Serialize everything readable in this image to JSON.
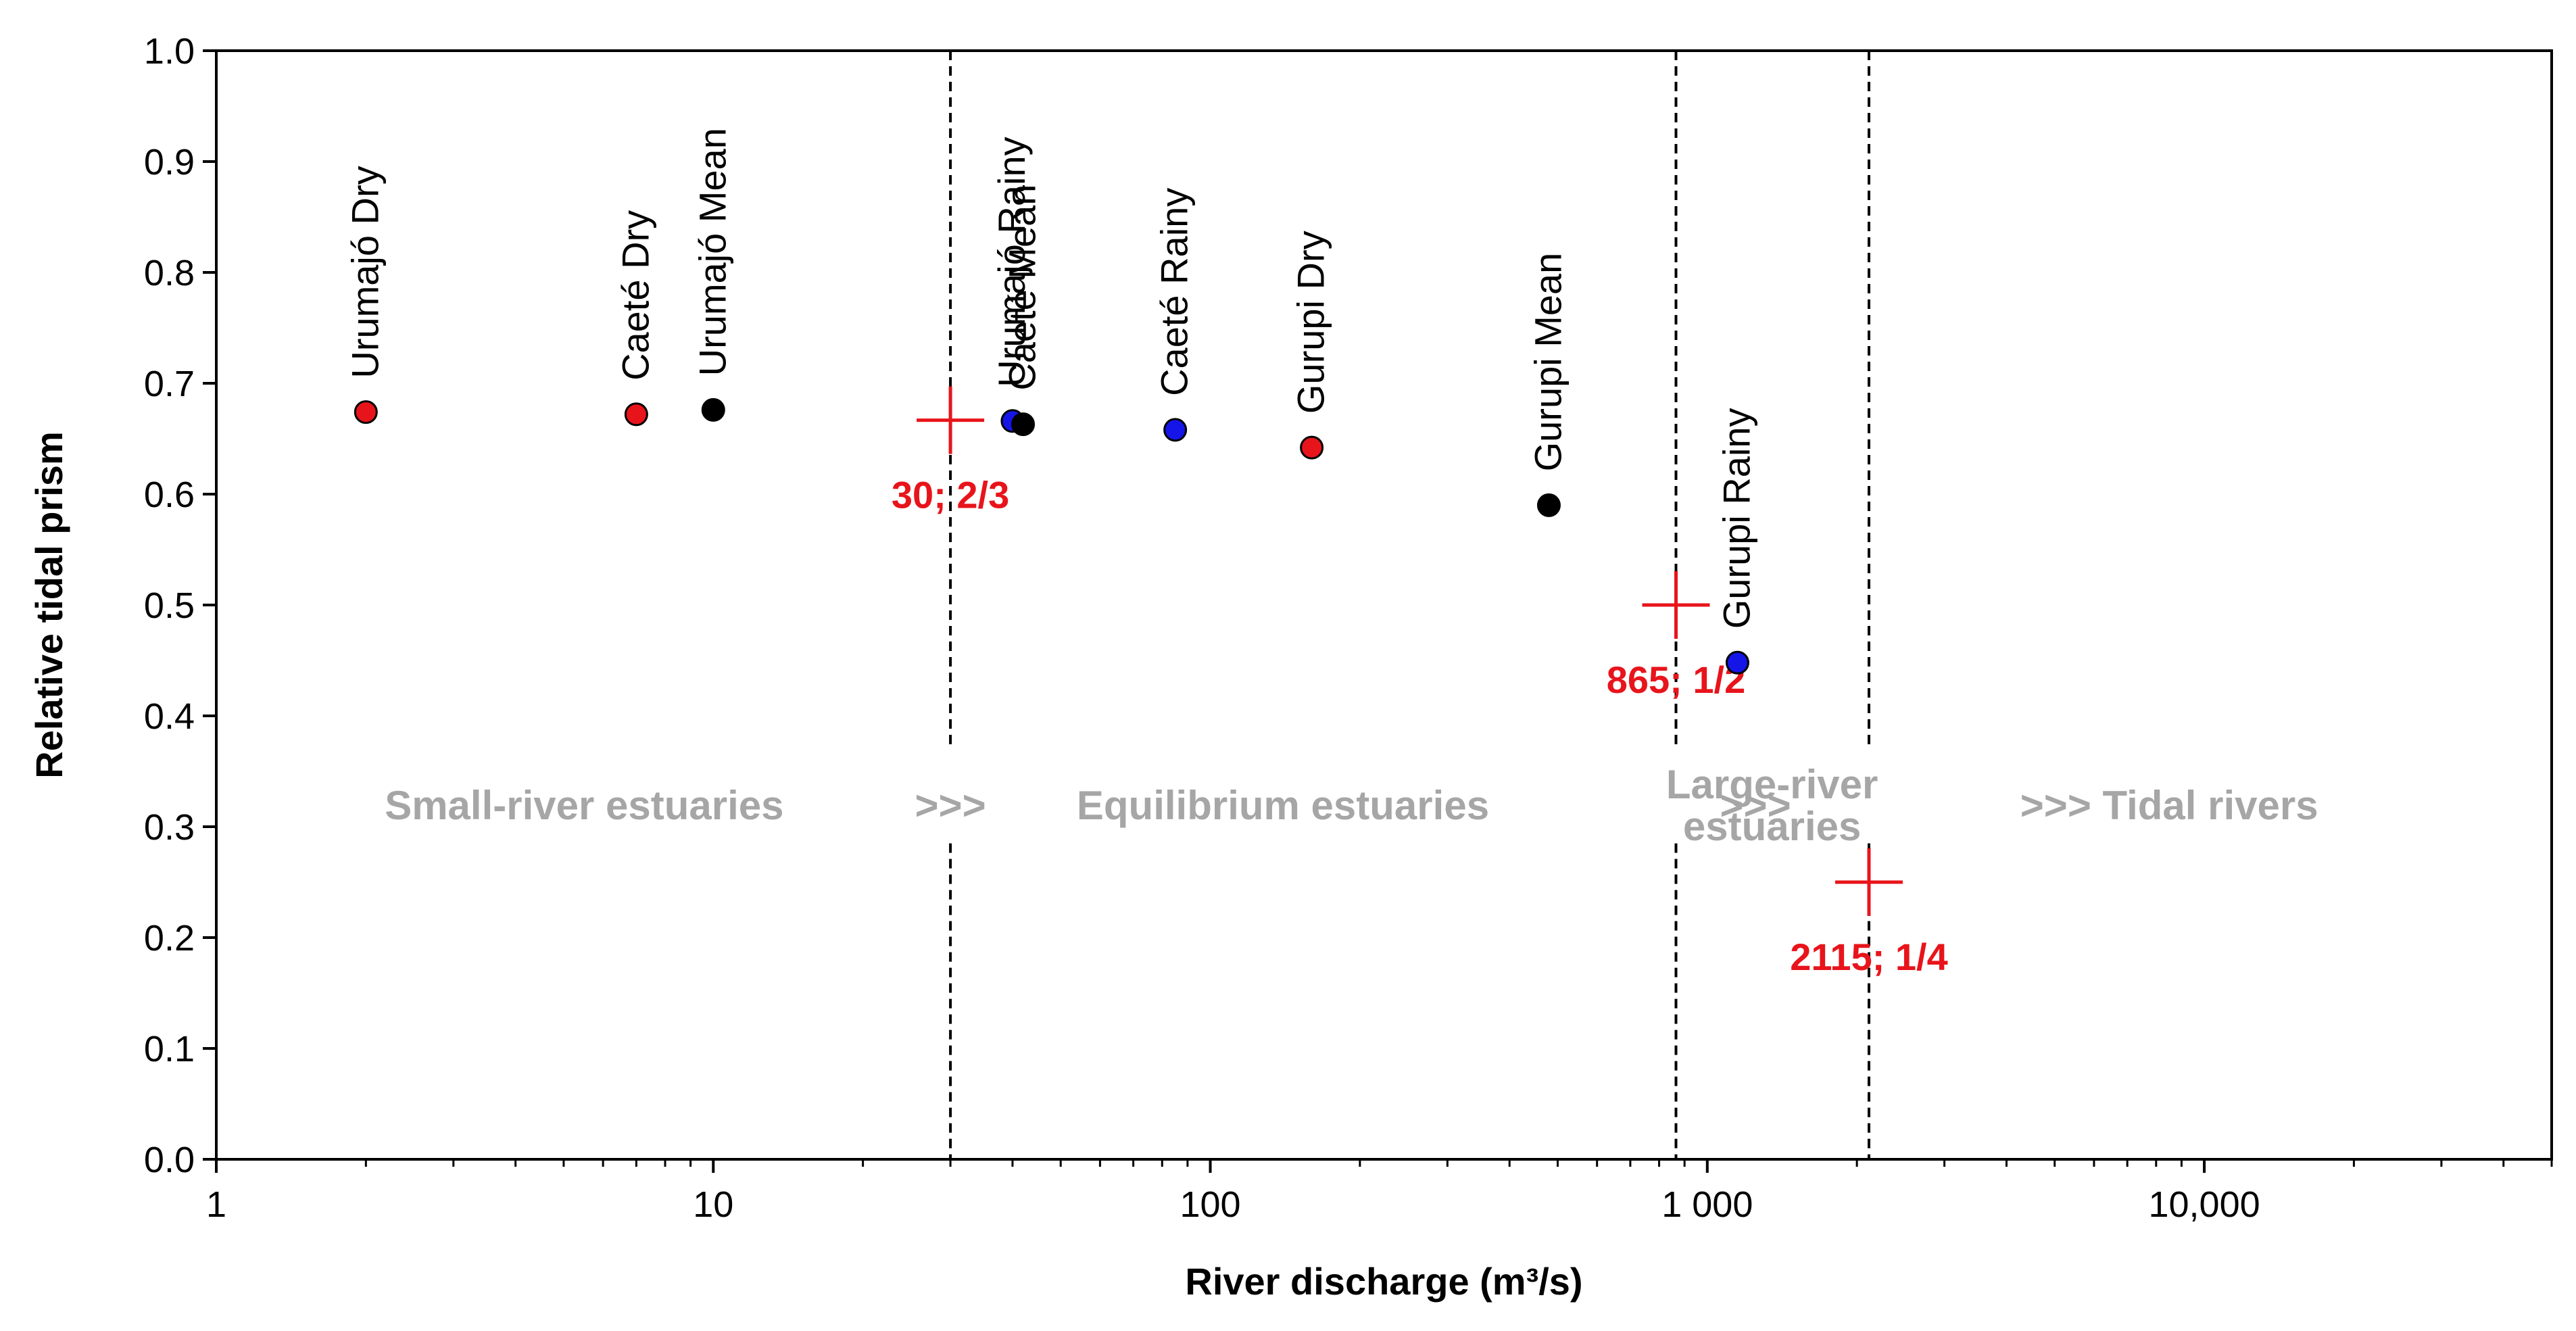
{
  "colors": {
    "dry": "#e8141b",
    "rainy": "#1515e8",
    "mean": "#000000",
    "threshold": "#e8141b",
    "region_text": "#a6a6a6",
    "axis": "#000000"
  },
  "chart_data": {
    "type": "scatter",
    "title": "",
    "xlabel": "River discharge (m³/s)",
    "ylabel": "Relative tidal prism",
    "xscale": "log",
    "xlim": [
      1,
      50000
    ],
    "ylim": [
      0,
      1
    ],
    "grid": false,
    "legend": "none",
    "x_ticks": [
      {
        "value": 1,
        "label": "1"
      },
      {
        "value": 10,
        "label": "10"
      },
      {
        "value": 100,
        "label": "100"
      },
      {
        "value": 1000,
        "label": "1 000"
      },
      {
        "value": 10000,
        "label": "10,000"
      }
    ],
    "y_ticks": [
      {
        "value": 0.0,
        "label": "0.0"
      },
      {
        "value": 0.1,
        "label": "0.1"
      },
      {
        "value": 0.2,
        "label": "0.2"
      },
      {
        "value": 0.3,
        "label": "0.3"
      },
      {
        "value": 0.4,
        "label": "0.4"
      },
      {
        "value": 0.5,
        "label": "0.5"
      },
      {
        "value": 0.6,
        "label": "0.6"
      },
      {
        "value": 0.7,
        "label": "0.7"
      },
      {
        "value": 0.8,
        "label": "0.8"
      },
      {
        "value": 0.9,
        "label": "0.9"
      },
      {
        "value": 1.0,
        "label": "1.0"
      }
    ],
    "points": [
      {
        "label": "Urumajó Dry",
        "season": "dry",
        "x": 2.0,
        "y": 0.674
      },
      {
        "label": "Caeté Dry",
        "season": "dry",
        "x": 7.0,
        "y": 0.672
      },
      {
        "label": "Urumajó Mean",
        "season": "mean",
        "x": 10.0,
        "y": 0.676
      },
      {
        "label": "Urumajó Rainy",
        "season": "rainy",
        "x": 40.0,
        "y": 0.666
      },
      {
        "label": "Caeté Mean",
        "season": "mean",
        "x": 42.0,
        "y": 0.663
      },
      {
        "label": "Caeté Rainy",
        "season": "rainy",
        "x": 85.0,
        "y": 0.658
      },
      {
        "label": "Gurupi Dry",
        "season": "dry",
        "x": 160.0,
        "y": 0.642
      },
      {
        "label": "Gurupi Mean",
        "season": "mean",
        "x": 480.0,
        "y": 0.59
      },
      {
        "label": "Gurupi Rainy",
        "season": "rainy",
        "x": 1150.0,
        "y": 0.448
      }
    ],
    "thresholds": [
      {
        "x": 30,
        "y": 0.6667,
        "label": "30;  2/3"
      },
      {
        "x": 865,
        "y": 0.5,
        "label": "865;  1/2"
      },
      {
        "x": 2115,
        "y": 0.25,
        "label": "2115;  1/4"
      }
    ],
    "regions": [
      {
        "lines": [
          "Small-river estuaries"
        ],
        "x": 5.5,
        "y": 0.32
      },
      {
        "lines": [
          ">>>"
        ],
        "x": 30,
        "y": 0.32
      },
      {
        "lines": [
          "Equilibrium estuaries"
        ],
        "x": 140,
        "y": 0.32
      },
      {
        "lines": [
          ">>>"
        ],
        "x": 1250,
        "y": 0.32
      },
      {
        "lines": [
          "Large-river",
          "estuaries"
        ],
        "x": 1350,
        "y": 0.32
      },
      {
        "lines": [
          ">>>",
          "Tidal rivers"
        ],
        "x": 8500,
        "y": 0.32
      }
    ]
  }
}
